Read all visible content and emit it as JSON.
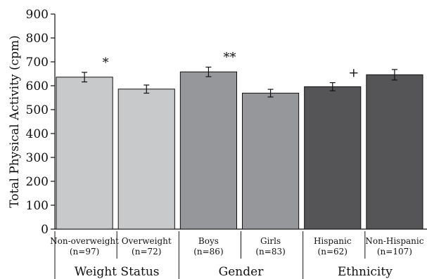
{
  "chart_data": {
    "type": "bar",
    "ylabel": "Total Physical Activity (cpm)",
    "ylim": [
      0,
      900
    ],
    "yticks": [
      0,
      100,
      200,
      300,
      400,
      500,
      600,
      700,
      800,
      900
    ],
    "categories": [
      {
        "label": "Non-overweight",
        "n": "(n=97)",
        "group": "Weight Status",
        "value": 636,
        "error": 20,
        "color": "#c8c9cb",
        "marker": "*"
      },
      {
        "label": "Overweight",
        "n": "(n=72)",
        "group": "Weight Status",
        "value": 586,
        "error": 17,
        "color": "#c8c9cb",
        "marker": ""
      },
      {
        "label": "Boys",
        "n": "(n=86)",
        "group": "Gender",
        "value": 658,
        "error": 20,
        "color": "#96979a",
        "marker": "**"
      },
      {
        "label": "Girls",
        "n": "(n=83)",
        "group": "Gender",
        "value": 569,
        "error": 16,
        "color": "#96979a",
        "marker": ""
      },
      {
        "label": "Hispanic",
        "n": "(n=62)",
        "group": "Ethnicity",
        "value": 596,
        "error": 17,
        "color": "#555557",
        "marker": "+"
      },
      {
        "label": "Non-Hispanic",
        "n": "(n=107)",
        "group": "Ethnicity",
        "value": 646,
        "error": 22,
        "color": "#555557",
        "marker": ""
      }
    ],
    "groups": [
      "Weight Status",
      "Gender",
      "Ethnicity"
    ]
  }
}
